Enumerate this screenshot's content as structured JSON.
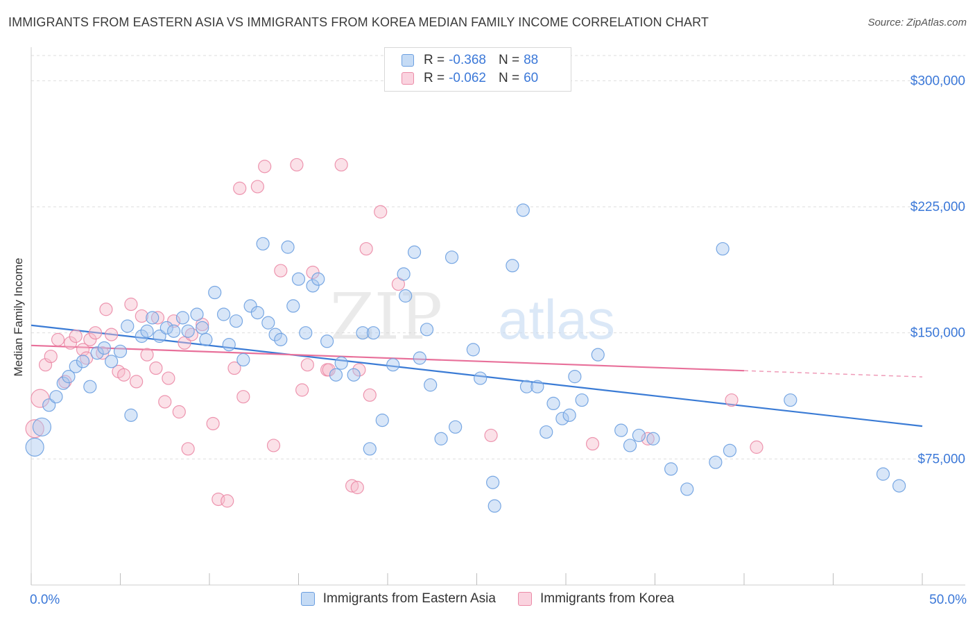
{
  "title": "IMMIGRANTS FROM EASTERN ASIA VS IMMIGRANTS FROM KOREA MEDIAN FAMILY INCOME CORRELATION CHART",
  "source": "Source: ZipAtlas.com",
  "watermark": {
    "zip": "ZIP",
    "atlas": "atlas"
  },
  "colors": {
    "blue_fill": "#a9c8f0",
    "blue_stroke": "#6a9ee0",
    "blue_line": "#3a7bd5",
    "pink_fill": "#f6bccd",
    "pink_stroke": "#eb8aa6",
    "pink_line": "#e8709a",
    "grid": "#dedede",
    "axis_text": "#3b78d8"
  },
  "legend_top": [
    {
      "r_label": "R = ",
      "r_value": "-0.368",
      "n_label": "N = ",
      "n_value": "88"
    },
    {
      "r_label": "R = ",
      "r_value": "-0.062",
      "n_label": "N = ",
      "n_value": "60"
    }
  ],
  "chart_data": {
    "type": "scatter",
    "title": "IMMIGRANTS FROM EASTERN ASIA VS IMMIGRANTS FROM KOREA MEDIAN FAMILY INCOME CORRELATION CHART",
    "xlabel": "",
    "ylabel": "Median Family Income",
    "xlim": [
      0,
      50
    ],
    "ylim": [
      0,
      315000
    ],
    "x_tick_labels": [
      "0.0%",
      "50.0%"
    ],
    "y_ticks": [
      75000,
      150000,
      225000,
      300000
    ],
    "y_tick_labels": [
      "$75,000",
      "$150,000",
      "$225,000",
      "$300,000"
    ],
    "grid": true,
    "legend_position": "bottom",
    "series": [
      {
        "name": "Immigrants from Eastern Asia",
        "color": "#6a9ee0",
        "trend": {
          "x": [
            0,
            50
          ],
          "y": [
            154500,
            94500
          ]
        },
        "points": [
          [
            0.2,
            82000
          ],
          [
            0.6,
            94000
          ],
          [
            1.0,
            107000
          ],
          [
            1.4,
            112000
          ],
          [
            1.8,
            120000
          ],
          [
            2.1,
            124000
          ],
          [
            2.5,
            130000
          ],
          [
            2.9,
            133000
          ],
          [
            3.3,
            118000
          ],
          [
            3.7,
            138000
          ],
          [
            4.1,
            141000
          ],
          [
            4.5,
            133000
          ],
          [
            5.0,
            139000
          ],
          [
            5.4,
            154000
          ],
          [
            5.6,
            101000
          ],
          [
            6.2,
            148000
          ],
          [
            6.5,
            151000
          ],
          [
            6.8,
            159000
          ],
          [
            7.2,
            148000
          ],
          [
            7.6,
            153000
          ],
          [
            8.0,
            151000
          ],
          [
            8.5,
            159000
          ],
          [
            8.8,
            151000
          ],
          [
            9.3,
            161000
          ],
          [
            9.6,
            153000
          ],
          [
            9.8,
            146000
          ],
          [
            10.3,
            174000
          ],
          [
            10.8,
            161000
          ],
          [
            11.1,
            143000
          ],
          [
            11.5,
            157000
          ],
          [
            11.9,
            134000
          ],
          [
            12.3,
            166000
          ],
          [
            12.7,
            162000
          ],
          [
            13.0,
            203000
          ],
          [
            13.3,
            156000
          ],
          [
            13.7,
            149000
          ],
          [
            14.0,
            146000
          ],
          [
            14.4,
            201000
          ],
          [
            14.7,
            166000
          ],
          [
            15.0,
            182000
          ],
          [
            15.4,
            150000
          ],
          [
            15.8,
            178000
          ],
          [
            16.1,
            182000
          ],
          [
            16.6,
            145000
          ],
          [
            17.1,
            125000
          ],
          [
            17.4,
            132000
          ],
          [
            18.1,
            125000
          ],
          [
            18.6,
            150000
          ],
          [
            19.2,
            150000
          ],
          [
            19.0,
            81000
          ],
          [
            19.7,
            98000
          ],
          [
            20.3,
            131000
          ],
          [
            20.9,
            185000
          ],
          [
            21.0,
            172000
          ],
          [
            21.5,
            198000
          ],
          [
            21.8,
            135000
          ],
          [
            22.2,
            152000
          ],
          [
            22.4,
            119000
          ],
          [
            23.0,
            87000
          ],
          [
            23.6,
            195000
          ],
          [
            23.8,
            94000
          ],
          [
            24.8,
            140000
          ],
          [
            25.2,
            123000
          ],
          [
            25.9,
            61000
          ],
          [
            26.0,
            47000
          ],
          [
            27.0,
            190000
          ],
          [
            27.6,
            223000
          ],
          [
            27.8,
            118000
          ],
          [
            28.4,
            118000
          ],
          [
            28.9,
            91000
          ],
          [
            29.3,
            108000
          ],
          [
            29.8,
            99000
          ],
          [
            30.2,
            101000
          ],
          [
            30.5,
            124000
          ],
          [
            30.9,
            110000
          ],
          [
            31.8,
            137000
          ],
          [
            33.1,
            92000
          ],
          [
            33.6,
            83000
          ],
          [
            34.1,
            89000
          ],
          [
            34.9,
            87000
          ],
          [
            35.9,
            69000
          ],
          [
            36.8,
            57000
          ],
          [
            38.4,
            73000
          ],
          [
            38.8,
            200000
          ],
          [
            39.2,
            80000
          ],
          [
            42.6,
            110000
          ],
          [
            47.8,
            66000
          ],
          [
            48.7,
            59000
          ]
        ]
      },
      {
        "name": "Immigrants from Korea",
        "color": "#eb8aa6",
        "trend": {
          "x": [
            0,
            40
          ],
          "y": [
            142500,
            127500
          ]
        },
        "trend_dashed": {
          "x": [
            40,
            50
          ],
          "y": [
            127500,
            123800
          ]
        },
        "points": [
          [
            0.2,
            93000
          ],
          [
            0.5,
            111000
          ],
          [
            0.8,
            131000
          ],
          [
            1.1,
            136000
          ],
          [
            1.5,
            146000
          ],
          [
            1.9,
            121000
          ],
          [
            2.2,
            144000
          ],
          [
            2.5,
            148000
          ],
          [
            2.9,
            140000
          ],
          [
            3.1,
            135000
          ],
          [
            3.3,
            146000
          ],
          [
            3.6,
            150000
          ],
          [
            4.0,
            138000
          ],
          [
            4.2,
            164000
          ],
          [
            4.5,
            149000
          ],
          [
            4.9,
            127000
          ],
          [
            5.2,
            125000
          ],
          [
            5.6,
            167000
          ],
          [
            5.9,
            121000
          ],
          [
            6.2,
            160000
          ],
          [
            6.5,
            137000
          ],
          [
            7.0,
            129000
          ],
          [
            7.1,
            159000
          ],
          [
            7.5,
            109000
          ],
          [
            7.7,
            123000
          ],
          [
            8.0,
            157000
          ],
          [
            8.3,
            103000
          ],
          [
            8.6,
            144000
          ],
          [
            8.8,
            81000
          ],
          [
            9.0,
            149000
          ],
          [
            9.6,
            155000
          ],
          [
            10.2,
            96000
          ],
          [
            10.5,
            51000
          ],
          [
            11.0,
            50000
          ],
          [
            11.4,
            129000
          ],
          [
            11.9,
            112000
          ],
          [
            11.7,
            236000
          ],
          [
            12.7,
            237000
          ],
          [
            13.1,
            249000
          ],
          [
            13.6,
            83000
          ],
          [
            14.0,
            187000
          ],
          [
            14.9,
            250000
          ],
          [
            15.2,
            116000
          ],
          [
            15.5,
            131000
          ],
          [
            15.8,
            186000
          ],
          [
            16.6,
            128000
          ],
          [
            16.7,
            128000
          ],
          [
            17.4,
            250000
          ],
          [
            18.0,
            59000
          ],
          [
            18.3,
            58000
          ],
          [
            18.4,
            128000
          ],
          [
            18.8,
            200000
          ],
          [
            19.0,
            113000
          ],
          [
            19.6,
            222000
          ],
          [
            20.6,
            179000
          ],
          [
            25.8,
            89000
          ],
          [
            31.5,
            84000
          ],
          [
            34.6,
            87000
          ],
          [
            39.3,
            110000
          ],
          [
            40.7,
            82000
          ]
        ]
      }
    ]
  }
}
